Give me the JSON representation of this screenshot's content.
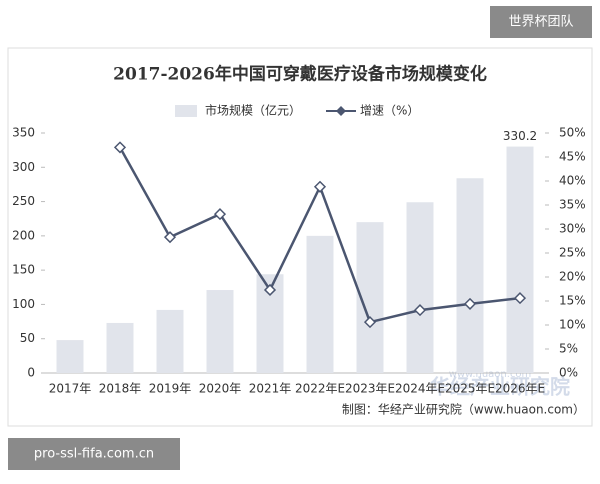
{
  "chart_data": {
    "type": "bar_line",
    "title": "2017-2026年中国可穿戴医疗设备市场规模变化",
    "categories": [
      "2017年",
      "2018年",
      "2019年",
      "2020年",
      "2021年",
      "2022年E",
      "2023年E",
      "2024年E",
      "2025年E",
      "2026年E"
    ],
    "series": [
      {
        "name": "市场规模（亿元）",
        "type": "bar",
        "color": "#e1e4eb",
        "values": [
          48,
          73,
          92,
          121,
          144,
          200,
          220,
          249,
          284,
          330.2
        ]
      },
      {
        "name": "增速（%）",
        "type": "line",
        "axis": "y2",
        "color": "#4b5670",
        "values": [
          null,
          47,
          28.3,
          33.1,
          17.3,
          38.8,
          10.6,
          13.1,
          14.4,
          15.6
        ]
      }
    ],
    "ylim": [
      0,
      350
    ],
    "yticks": [
      0,
      50,
      100,
      150,
      200,
      250,
      300,
      350
    ],
    "y2lim": [
      0,
      50
    ],
    "y2ticks": [
      {
        "value": 0,
        "label": "0%"
      },
      {
        "value": 5,
        "label": "5%"
      },
      {
        "value": 10,
        "label": "10%"
      },
      {
        "value": 15,
        "label": "15%"
      },
      {
        "value": 20,
        "label": "20%"
      },
      {
        "value": 25,
        "label": "25%"
      },
      {
        "value": 30,
        "label": "30%"
      },
      {
        "value": 35,
        "label": "35%"
      },
      {
        "value": 40,
        "label": "40%"
      },
      {
        "value": 45,
        "label": "45%"
      },
      {
        "value": 50,
        "label": "50%"
      }
    ],
    "grid": false,
    "legend": "top",
    "source": "制图：华经产业研究院（www.huaon.com）",
    "watermark": "华经产业研究院",
    "watermark_url": "www.huaon.com"
  },
  "overlay": {
    "team": "世界杯团队",
    "url": "pro-ssl-fifa.com.cn"
  }
}
